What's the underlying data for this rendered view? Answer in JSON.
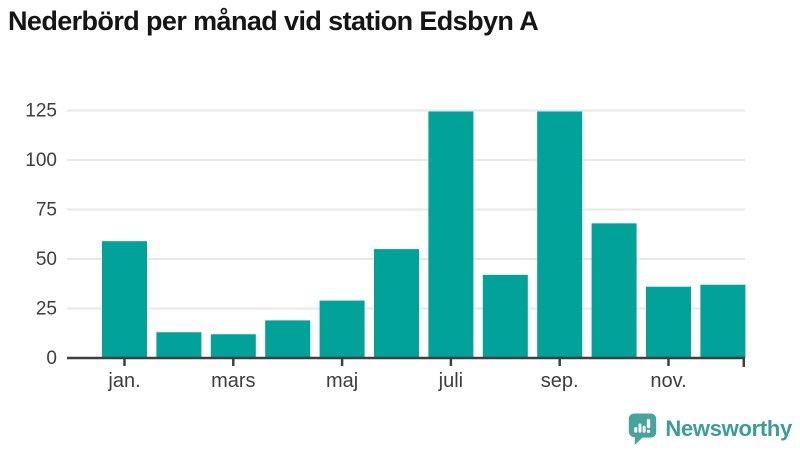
{
  "title": "Nederbörd per månad vid station Edsbyn A",
  "logo": {
    "text": "Newsworthy",
    "icon": "bar-chart-speech-bubble",
    "text_color": "#3b9d97",
    "icon_color": "#47a49d"
  },
  "colors": {
    "bar": "#00a29a",
    "gridline": "#e7e7e7",
    "axis": "#3f3f3f",
    "tick_label": "#3d3d3d",
    "background": "#ffffff"
  },
  "chart_data": {
    "type": "bar",
    "title": "Nederbörd per månad vid station Edsbyn A",
    "n_bars": 12,
    "values": [
      59,
      13,
      12,
      19,
      29,
      55,
      124.5,
      42,
      124.5,
      68,
      36,
      37
    ],
    "x_tick_labels": [
      "jan.",
      "mars",
      "maj",
      "juli",
      "sep.",
      "nov."
    ],
    "x_tick_bar_indices": [
      0,
      2,
      4,
      6,
      8,
      10
    ],
    "y_ticks": [
      0,
      25,
      50,
      75,
      100,
      125
    ],
    "ylim": [
      0,
      133
    ],
    "grid": true,
    "legend": false,
    "bar_color": "#00a29a"
  }
}
